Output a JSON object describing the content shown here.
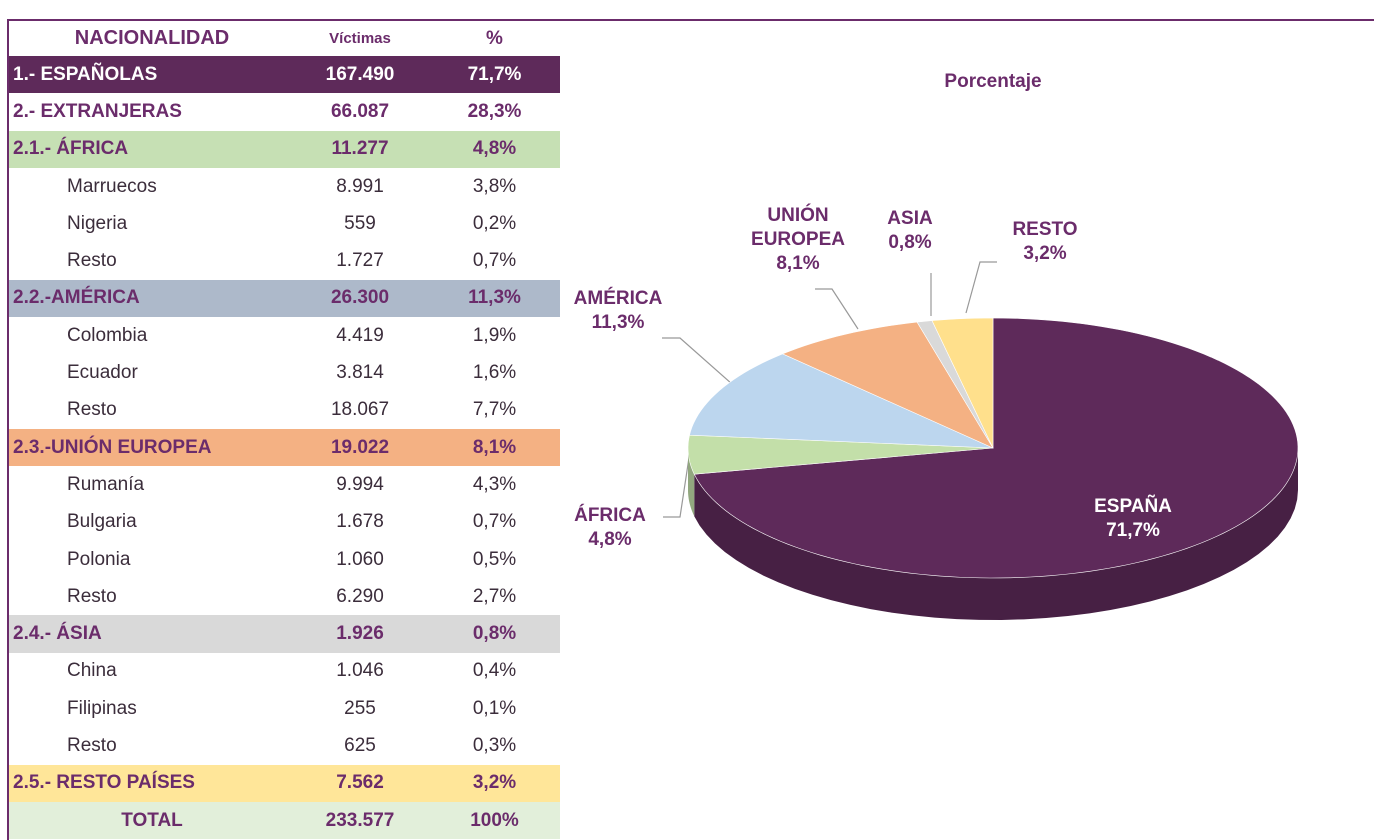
{
  "table": {
    "header": [
      "NACIONALIDAD",
      "Víctimas",
      "%"
    ],
    "rows": [
      [
        "1.- ESPAÑOLAS",
        "167.490",
        "71,7%"
      ],
      [
        "2.- EXTRANJERAS",
        "66.087",
        "28,3%"
      ],
      [
        "2.1.- ÁFRICA",
        "11.277",
        "4,8%"
      ],
      [
        "Marruecos",
        "8.991",
        "3,8%"
      ],
      [
        "Nigeria",
        "559",
        "0,2%"
      ],
      [
        "Resto",
        "1.727",
        "0,7%"
      ],
      [
        "2.2.-AMÉRICA",
        "26.300",
        "11,3%"
      ],
      [
        "Colombia",
        "4.419",
        "1,9%"
      ],
      [
        "Ecuador",
        "3.814",
        "1,6%"
      ],
      [
        "Resto",
        "18.067",
        "7,7%"
      ],
      [
        "2.3.-UNIÓN EUROPEA",
        "19.022",
        "8,1%"
      ],
      [
        "Rumanía",
        "9.994",
        "4,3%"
      ],
      [
        "Bulgaria",
        "1.678",
        "0,7%"
      ],
      [
        "Polonia",
        "1.060",
        "0,5%"
      ],
      [
        "Resto",
        "6.290",
        "2,7%"
      ],
      [
        "2.4.- ÁSIA",
        "1.926",
        "0,8%"
      ],
      [
        "China",
        "1.046",
        "0,4%"
      ],
      [
        "Filipinas",
        "255",
        "0,1%"
      ],
      [
        "Resto",
        "625",
        "0,3%"
      ],
      [
        "2.5.- RESTO PAÍSES",
        "7.562",
        "3,2%"
      ],
      [
        "TOTAL",
        "233.577",
        "100%"
      ]
    ]
  },
  "chart_data": {
    "type": "pie",
    "title": "Porcentaje",
    "categories": [
      "ESPAÑA",
      "ÁFRICA",
      "AMÉRICA",
      "UNIÓN EUROPEA",
      "ASIA",
      "RESTO"
    ],
    "values": [
      71.7,
      4.8,
      11.3,
      8.1,
      0.8,
      3.2
    ],
    "value_labels": [
      "71,7%",
      "4,8%",
      "11,3%",
      "8,1%",
      "0,8%",
      "3,2%"
    ],
    "colors": [
      "#5e2a5a",
      "#c3dfa9",
      "#bcd6ee",
      "#f4b183",
      "#d9d9d9",
      "#ffe08c"
    ]
  }
}
